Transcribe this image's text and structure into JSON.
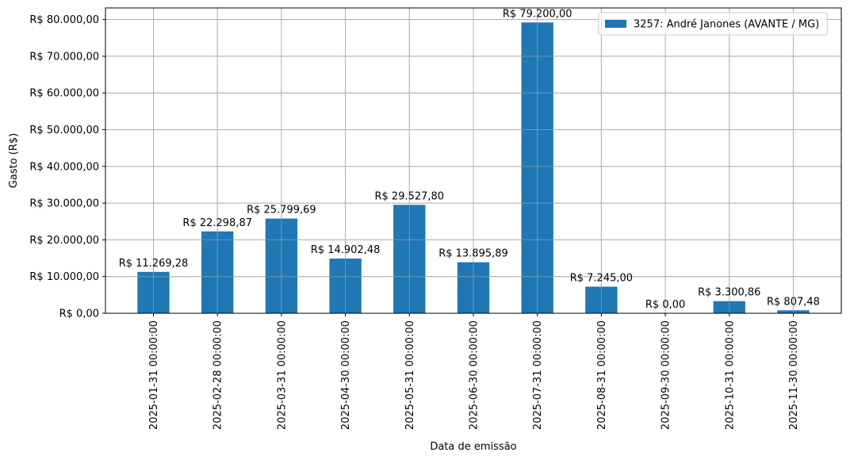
{
  "chart_data": {
    "type": "bar",
    "xlabel": "Data de emissão",
    "ylabel": "Gasto (R$)",
    "categories": [
      "2025-01-31 00:00:00",
      "2025-02-28 00:00:00",
      "2025-03-31 00:00:00",
      "2025-04-30 00:00:00",
      "2025-05-31 00:00:00",
      "2025-06-30 00:00:00",
      "2025-07-31 00:00:00",
      "2025-08-31 00:00:00",
      "2025-09-30 00:00:00",
      "2025-10-31 00:00:00",
      "2025-11-30 00:00:00"
    ],
    "series": [
      {
        "name": "3257: André Janones (AVANTE / MG)",
        "color": "#1f77b4",
        "values": [
          11269.28,
          22298.87,
          25799.69,
          14902.48,
          29527.8,
          13895.89,
          79200.0,
          7245.0,
          0.0,
          3300.86,
          807.48
        ],
        "value_labels": [
          "R$ 11.269,28",
          "R$ 22.298,87",
          "R$ 25.799,69",
          "R$ 14.902,48",
          "R$ 29.527,80",
          "R$ 13.895,89",
          "R$ 79.200,00",
          "R$ 7.245,00",
          "R$ 0,00",
          "R$ 3.300,86",
          "R$ 807,48"
        ]
      }
    ],
    "ylim": [
      0,
      83160
    ],
    "yticks": [
      0,
      10000,
      20000,
      30000,
      40000,
      50000,
      60000,
      70000,
      80000
    ],
    "ytick_labels": [
      "R$ 0,00",
      "R$ 10.000,00",
      "R$ 20.000,00",
      "R$ 30.000,00",
      "R$ 40.000,00",
      "R$ 50.000,00",
      "R$ 60.000,00",
      "R$ 70.000,00",
      "R$ 80.000,00"
    ],
    "grid": true,
    "legend_position": "top-right",
    "grid_color": "#b0b0b0",
    "axis_color": "#000000"
  }
}
